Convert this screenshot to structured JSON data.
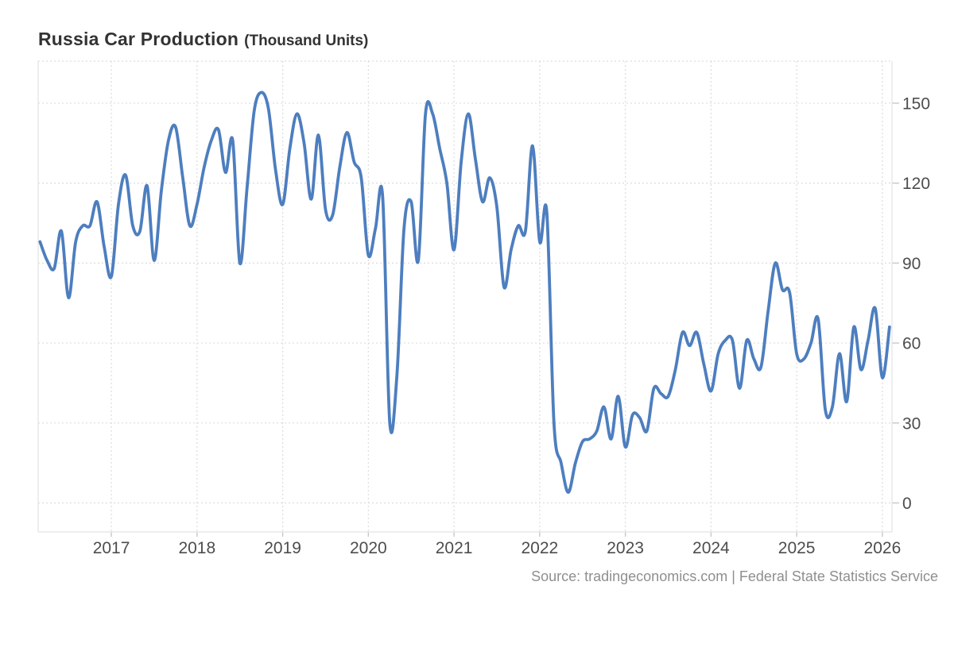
{
  "header": {
    "title": "Russia Car Production",
    "subtitle": "(Thousand Units)"
  },
  "footer": {
    "source": "Source: tradingeconomics.com | Federal State Statistics Service"
  },
  "colors": {
    "line": "#4d7ebf",
    "grid_dotted": "#dcdcdc",
    "axis_solid": "#e3e3e3",
    "tick": "#c8c8c8",
    "axis_label": "#4d4d4d",
    "title_text": "#333333",
    "source_text": "#8f8f8f"
  },
  "chart_data": {
    "type": "line",
    "title": "Russia Car Production",
    "subtitle": "(Thousand Units)",
    "ylabel": "Thousand Units",
    "xlabel": "",
    "frequency": "monthly",
    "ylim": [
      0,
      165
    ],
    "xlim": [
      "2016-02",
      "2026-02"
    ],
    "y_ticks": [
      0,
      30,
      60,
      90,
      120,
      150
    ],
    "x_ticks": [
      2017,
      2018,
      2019,
      2020,
      2021,
      2022,
      2023,
      2024,
      2025,
      2026
    ],
    "grid": "dotted",
    "legend_position": "none",
    "series": [
      {
        "name": "Car Production",
        "points": [
          [
            "2016-03",
            98
          ],
          [
            "2016-04",
            91
          ],
          [
            "2016-05",
            88
          ],
          [
            "2016-06",
            102
          ],
          [
            "2016-07",
            77
          ],
          [
            "2016-08",
            98
          ],
          [
            "2016-09",
            104
          ],
          [
            "2016-10",
            104
          ],
          [
            "2016-11",
            113
          ],
          [
            "2016-12",
            96
          ],
          [
            "2017-01",
            85
          ],
          [
            "2017-02",
            112
          ],
          [
            "2017-03",
            123
          ],
          [
            "2017-04",
            104
          ],
          [
            "2017-05",
            102
          ],
          [
            "2017-06",
            119
          ],
          [
            "2017-07",
            91
          ],
          [
            "2017-08",
            117
          ],
          [
            "2017-09",
            136
          ],
          [
            "2017-10",
            141
          ],
          [
            "2017-11",
            122
          ],
          [
            "2017-12",
            104
          ],
          [
            "2018-01",
            112
          ],
          [
            "2018-02",
            126
          ],
          [
            "2018-03",
            136
          ],
          [
            "2018-04",
            140
          ],
          [
            "2018-05",
            124
          ],
          [
            "2018-06",
            136
          ],
          [
            "2018-07",
            90
          ],
          [
            "2018-08",
            118
          ],
          [
            "2018-09",
            147
          ],
          [
            "2018-10",
            154
          ],
          [
            "2018-11",
            148
          ],
          [
            "2018-12",
            125
          ],
          [
            "2019-01",
            112
          ],
          [
            "2019-02",
            133
          ],
          [
            "2019-03",
            146
          ],
          [
            "2019-04",
            135
          ],
          [
            "2019-05",
            114
          ],
          [
            "2019-06",
            138
          ],
          [
            "2019-07",
            110
          ],
          [
            "2019-08",
            108
          ],
          [
            "2019-09",
            126
          ],
          [
            "2019-10",
            139
          ],
          [
            "2019-11",
            128
          ],
          [
            "2019-12",
            122
          ],
          [
            "2020-01",
            93
          ],
          [
            "2020-02",
            103
          ],
          [
            "2020-03",
            115
          ],
          [
            "2020-04",
            30
          ],
          [
            "2020-05",
            48
          ],
          [
            "2020-06",
            103
          ],
          [
            "2020-07",
            113
          ],
          [
            "2020-08",
            91
          ],
          [
            "2020-09",
            146
          ],
          [
            "2020-10",
            146
          ],
          [
            "2020-11",
            133
          ],
          [
            "2020-12",
            120
          ],
          [
            "2021-01",
            95
          ],
          [
            "2021-02",
            128
          ],
          [
            "2021-03",
            146
          ],
          [
            "2021-04",
            129
          ],
          [
            "2021-05",
            113
          ],
          [
            "2021-06",
            122
          ],
          [
            "2021-07",
            111
          ],
          [
            "2021-08",
            81
          ],
          [
            "2021-09",
            95
          ],
          [
            "2021-10",
            104
          ],
          [
            "2021-11",
            102
          ],
          [
            "2021-12",
            134
          ],
          [
            "2022-01",
            98
          ],
          [
            "2022-02",
            109
          ],
          [
            "2022-03",
            30
          ],
          [
            "2022-04",
            15
          ],
          [
            "2022-05",
            4
          ],
          [
            "2022-06",
            15
          ],
          [
            "2022-07",
            23
          ],
          [
            "2022-08",
            24
          ],
          [
            "2022-09",
            27
          ],
          [
            "2022-10",
            36
          ],
          [
            "2022-11",
            24
          ],
          [
            "2022-12",
            40
          ],
          [
            "2023-01",
            21
          ],
          [
            "2023-02",
            33
          ],
          [
            "2023-03",
            32
          ],
          [
            "2023-04",
            27
          ],
          [
            "2023-05",
            43
          ],
          [
            "2023-06",
            41
          ],
          [
            "2023-07",
            40
          ],
          [
            "2023-08",
            50
          ],
          [
            "2023-09",
            64
          ],
          [
            "2023-10",
            59
          ],
          [
            "2023-11",
            64
          ],
          [
            "2023-12",
            52
          ],
          [
            "2024-01",
            42
          ],
          [
            "2024-02",
            56
          ],
          [
            "2024-03",
            61
          ],
          [
            "2024-04",
            61
          ],
          [
            "2024-05",
            43
          ],
          [
            "2024-06",
            61
          ],
          [
            "2024-07",
            54
          ],
          [
            "2024-08",
            51
          ],
          [
            "2024-09",
            72
          ],
          [
            "2024-10",
            90
          ],
          [
            "2024-11",
            80
          ],
          [
            "2024-12",
            79
          ],
          [
            "2025-01",
            56
          ],
          [
            "2025-02",
            54
          ],
          [
            "2025-03",
            60
          ],
          [
            "2025-04",
            69
          ],
          [
            "2025-05",
            35
          ],
          [
            "2025-06",
            36
          ],
          [
            "2025-07",
            56
          ],
          [
            "2025-08",
            38
          ],
          [
            "2025-09",
            66
          ],
          [
            "2025-10",
            50
          ],
          [
            "2025-11",
            61
          ],
          [
            "2025-12",
            73
          ],
          [
            "2026-01",
            47
          ],
          [
            "2026-02",
            66
          ]
        ]
      }
    ]
  }
}
